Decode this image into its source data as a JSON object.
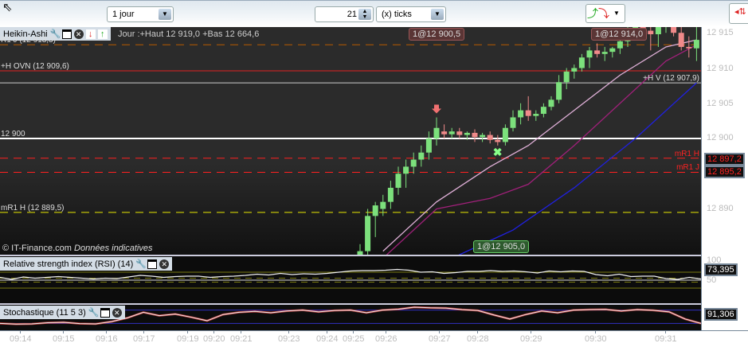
{
  "toolbar": {
    "period": "1 jour",
    "ticks_value": "21",
    "ticks_unit": "(x) ticks"
  },
  "chart": {
    "title": "Heikin-Ashi",
    "info": "Jour :+Haut 12 919,0 +Bas 12 664,6",
    "copyright": "© IT-Finance.com",
    "disclaimer": "Données indicatives",
    "levels": [
      {
        "label": "R1 J (12 913,3)",
        "price": 12913.3,
        "color": "#b85a00",
        "style": "dashed"
      },
      {
        "label": "+H OVN (12 909,6)",
        "price": 12909.6,
        "color": "#e02020",
        "style": "solid"
      },
      {
        "label": "+H V (12 907,9)",
        "price": 12907.9,
        "color": "#cccccc",
        "style": "solid"
      },
      {
        "label": "12 900",
        "price": 12900,
        "color": "#ffffff",
        "style": "solid"
      },
      {
        "label": "mR1 H",
        "price": 12897.2,
        "color": "#ff2020",
        "style": "dashed"
      },
      {
        "label": "mR1 J",
        "price": 12895.2,
        "color": "#ff2020",
        "style": "dashed"
      },
      {
        "label": "mR1 H (12 889,5)",
        "price": 12889.5,
        "color": "#e8e800",
        "style": "dashed"
      }
    ],
    "orders": [
      {
        "label": "1@12 900,5",
        "type": "sell"
      },
      {
        "label": "1@12 914,0",
        "type": "sell"
      },
      {
        "label": "1@12 905,0",
        "type": "buy"
      }
    ],
    "price_ticks": [
      "12 915",
      "12 910",
      "12 905",
      "12 900",
      "12 890"
    ],
    "price_boxes": [
      "12 897,2",
      "12 895,2"
    ],
    "candles": [
      [
        12878,
        12885,
        12876,
        12884
      ],
      [
        12884,
        12890,
        12883,
        12889
      ],
      [
        12889,
        12891,
        12886,
        12890.5
      ],
      [
        12890,
        12892,
        12889,
        12891
      ],
      [
        12891,
        12894,
        12890,
        12893
      ],
      [
        12893,
        12896,
        12892,
        12895
      ],
      [
        12895,
        12897,
        12893,
        12896
      ],
      [
        12896,
        12898,
        12895,
        12897
      ],
      [
        12897,
        12899,
        12896,
        12898
      ],
      [
        12898,
        12901,
        12897,
        12900
      ],
      [
        12900,
        12903,
        12899,
        12901.5
      ],
      [
        12901,
        12902,
        12900,
        12900.6
      ],
      [
        12900.6,
        12901.5,
        12900,
        12901
      ],
      [
        12901,
        12901.5,
        12900,
        12900.5
      ],
      [
        12900.5,
        12901,
        12899.8,
        12900.8
      ],
      [
        12900.8,
        12901.3,
        12899.5,
        12900.2
      ],
      [
        12900.2,
        12900.8,
        12899.5,
        12900.5
      ],
      [
        12900.5,
        12901,
        12899.3,
        12899.8
      ],
      [
        12899.8,
        12900.5,
        12899,
        12899.5
      ],
      [
        12899.5,
        12902,
        12899,
        12901.5
      ],
      [
        12901.5,
        12904,
        12901,
        12903
      ],
      [
        12903,
        12905,
        12902,
        12904
      ],
      [
        12904,
        12906,
        12902.5,
        12903.2
      ],
      [
        12903.2,
        12904,
        12902.5,
        12903.5
      ],
      [
        12903.5,
        12905,
        12903,
        12904.5
      ],
      [
        12904.5,
        12906,
        12904,
        12905.5
      ],
      [
        12905.5,
        12909,
        12905,
        12908
      ],
      [
        12908,
        12910,
        12907,
        12909.5
      ],
      [
        12909.5,
        12910.5,
        12908.5,
        12910
      ],
      [
        12910,
        12912,
        12909.5,
        12911.5
      ],
      [
        12911.5,
        12913,
        12910,
        12912.5
      ],
      [
        12912.5,
        12913.5,
        12911.5,
        12912
      ],
      [
        12912,
        12913,
        12911,
        12912.3
      ],
      [
        12912.3,
        12913,
        12911.5,
        12912.8
      ],
      [
        12912.8,
        12914,
        12912,
        12913.8
      ],
      [
        12913.8,
        12916,
        12913,
        12915
      ],
      [
        12915,
        12916.5,
        12914.5,
        12916
      ],
      [
        12916,
        12917,
        12914,
        12915.3
      ],
      [
        12915.3,
        12917,
        12912.5,
        12914.8
      ],
      [
        12914.8,
        12917,
        12913,
        12916
      ],
      [
        12916,
        12917,
        12915,
        12916.5
      ],
      [
        12916.5,
        12917,
        12914.5,
        12915
      ],
      [
        12915,
        12916,
        12912.5,
        12913
      ],
      [
        12913,
        12914.5,
        12911.5,
        12912.8
      ],
      [
        12912.8,
        12916,
        12911,
        12914
      ]
    ],
    "signals": [
      {
        "type": "sell-arrow",
        "candle": 10
      },
      {
        "type": "buy-cross",
        "candle": 18
      }
    ],
    "ma_pink": [
      [
        3,
        12884
      ],
      [
        10,
        12891
      ],
      [
        17,
        12896
      ],
      [
        22,
        12899
      ],
      [
        28,
        12904
      ],
      [
        34,
        12909
      ],
      [
        40,
        12913
      ],
      [
        44,
        12914
      ]
    ],
    "ma_magenta": [
      [
        3,
        12883
      ],
      [
        10,
        12890
      ],
      [
        17,
        12891.5
      ],
      [
        22,
        12893.5
      ],
      [
        28,
        12899
      ],
      [
        34,
        12905
      ],
      [
        40,
        12911
      ],
      [
        44,
        12913.3
      ]
    ],
    "ma_blue": [
      [
        12,
        12883
      ],
      [
        20,
        12887
      ],
      [
        28,
        12893
      ],
      [
        36,
        12900
      ],
      [
        44,
        12907.9
      ]
    ],
    "colors": {
      "up": "#7ce07c",
      "down": "#f08a8a",
      "pink": "#e0b0d8",
      "magenta": "#a0207a",
      "blue": "#2020e0"
    }
  },
  "rsi": {
    "title": "Relative strength index (RSI) (14)",
    "value": "73,395",
    "ticks": [
      "100",
      "50"
    ],
    "values": [
      57,
      52,
      58,
      55,
      57,
      59,
      57,
      55,
      53,
      55,
      54,
      58,
      62,
      60,
      57,
      59,
      60,
      60,
      57,
      59,
      60,
      62,
      65,
      63,
      67,
      64,
      66,
      65,
      67,
      70,
      73,
      74,
      74,
      75,
      77,
      75,
      70,
      71,
      67,
      69,
      72,
      72,
      74,
      72,
      73,
      71,
      68,
      73,
      71,
      73,
      72,
      64,
      61,
      65,
      59,
      60,
      60,
      54,
      52,
      57,
      53
    ]
  },
  "stoch": {
    "title": "Stochastique (11 5 3)",
    "value": "91,306",
    "values": [
      20,
      17,
      18,
      23,
      25,
      19,
      18,
      28,
      45,
      70,
      55,
      62,
      48,
      32,
      60,
      70,
      74,
      68,
      76,
      80,
      72,
      78,
      80,
      68,
      80,
      84,
      93,
      90,
      89,
      82,
      78,
      58,
      40,
      60,
      76,
      68,
      80,
      82,
      83,
      76,
      82,
      79,
      72,
      40,
      20
    ]
  },
  "xaxis": {
    "labels": [
      "09:14",
      "09:15",
      "09:16",
      "09:17",
      "09:19",
      "09:20",
      "09:21",
      "09:23",
      "09:24",
      "09:25",
      "09:26",
      "09:27",
      "09:28",
      "09:29",
      "09:30",
      "09:31"
    ]
  }
}
